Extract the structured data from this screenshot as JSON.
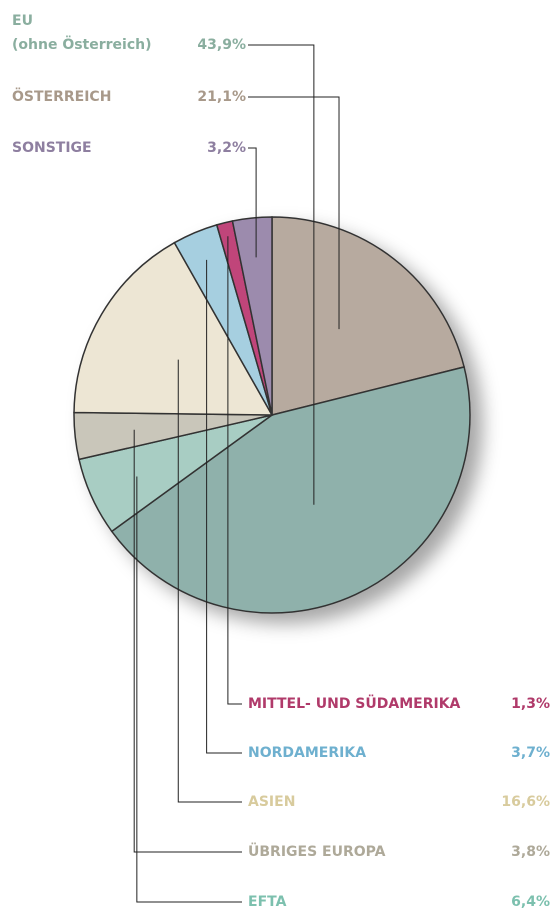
{
  "chart_data": {
    "type": "pie",
    "categories": [
      "ÖSTERREICH",
      "EU\n(ohne Österreich)",
      "EFTA",
      "ÜBRIGES EUROPA",
      "ASIEN",
      "NORDAMERIKA",
      "MITTEL- UND SÜDAMERIKA",
      "SONSTIGE"
    ],
    "values": [
      21.1,
      43.9,
      6.4,
      3.8,
      16.6,
      3.7,
      1.3,
      3.2
    ],
    "value_labels": [
      "21,1%",
      "43,9%",
      "6,4%",
      "3,8%",
      "16,6%",
      "3,7%",
      "1,3%",
      "3,2%"
    ],
    "colors": [
      "#b7aa9f",
      "#8fb1ab",
      "#a8cdc3",
      "#c9c6ba",
      "#ede6d4",
      "#a6cfe0",
      "#c0457a",
      "#9c8bad"
    ],
    "label_colors": [
      "#a8998a",
      "#8aae9f",
      "#7cc0ae",
      "#aea999",
      "#d8cb9d",
      "#6eb0cf",
      "#b03a6a",
      "#8e7fa0"
    ]
  }
}
